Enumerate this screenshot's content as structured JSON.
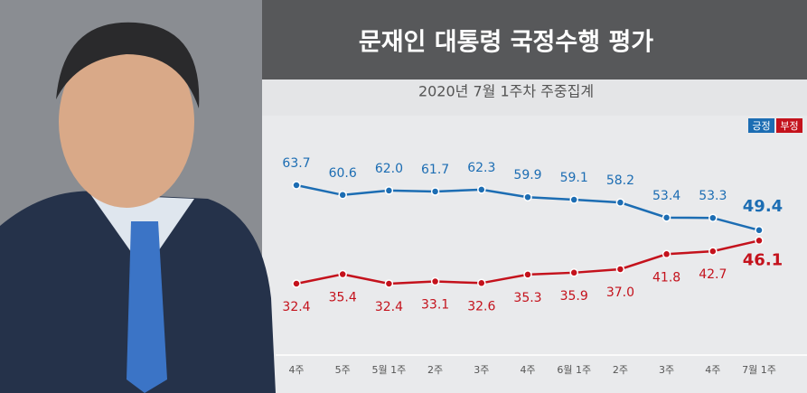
{
  "chart_data": {
    "type": "line",
    "title": "문재인 대통령 국정수행 평가",
    "subtitle": "2020년 7월 1주차 주중집계",
    "categories": [
      "4주",
      "5주",
      "5월 1주",
      "2주",
      "3주",
      "4주",
      "6월 1주",
      "2주",
      "3주",
      "4주",
      "7월 1주"
    ],
    "series": [
      {
        "name": "긍정",
        "color": "#1c6db3",
        "values": [
          63.7,
          60.6,
          62.0,
          61.7,
          62.3,
          59.9,
          59.1,
          58.2,
          53.4,
          53.3,
          49.4
        ],
        "value_labels": [
          "63.7",
          "60.6",
          "62.0",
          "61.7",
          "62.3",
          "59.9",
          "59.1",
          "58.2",
          "53.4",
          "53.3",
          "49.4"
        ]
      },
      {
        "name": "부정",
        "color": "#c4121c",
        "values": [
          32.4,
          35.4,
          32.4,
          33.1,
          32.6,
          35.3,
          35.9,
          37.0,
          41.8,
          42.7,
          46.1
        ],
        "value_labels": [
          "32.4",
          "35.4",
          "32.4",
          "33.1",
          "32.6",
          "35.3",
          "35.9",
          "37.0",
          "41.8",
          "42.7",
          "46.1"
        ]
      }
    ]
  }
}
